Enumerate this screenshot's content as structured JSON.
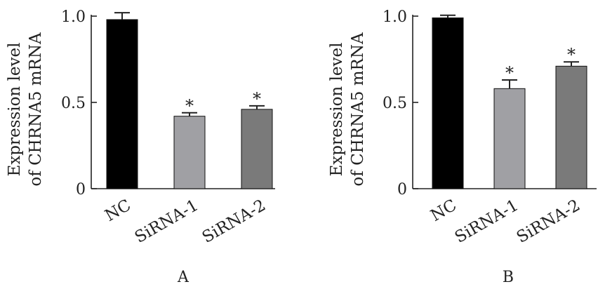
{
  "chart_data": [
    {
      "type": "bar",
      "panel_label": "A",
      "ylabel_line1": "Expression level",
      "ylabel_line2": "of CHRNA5 mRNA",
      "xlabel": "",
      "categories": [
        "NC",
        "SiRNA-1",
        "SiRNA-2"
      ],
      "values": [
        0.98,
        0.42,
        0.46
      ],
      "errors": [
        0.04,
        0.02,
        0.02
      ],
      "significance": [
        "",
        "*",
        "*"
      ],
      "bar_colors": [
        "#000000",
        "#a0a0a4",
        "#7a7a7a"
      ],
      "ylim": [
        0,
        1.0
      ],
      "yticks": [
        0,
        0.5,
        1.0
      ],
      "ytick_labels": [
        "0",
        "0.5",
        "1.0"
      ],
      "grid": false
    },
    {
      "type": "bar",
      "panel_label": "B",
      "ylabel_line1": "Expression level",
      "ylabel_line2": "of CHRNA5 mRNA",
      "xlabel": "",
      "categories": [
        "NC",
        "SiRNA-1",
        "SiRNA-2"
      ],
      "values": [
        0.99,
        0.58,
        0.71
      ],
      "errors": [
        0.015,
        0.05,
        0.025
      ],
      "significance": [
        "",
        "*",
        "*"
      ],
      "bar_colors": [
        "#000000",
        "#a0a0a4",
        "#7a7a7a"
      ],
      "ylim": [
        0,
        1.0
      ],
      "yticks": [
        0,
        0.5,
        1.0
      ],
      "ytick_labels": [
        "0",
        "0.5",
        "1.0"
      ],
      "grid": false
    }
  ]
}
